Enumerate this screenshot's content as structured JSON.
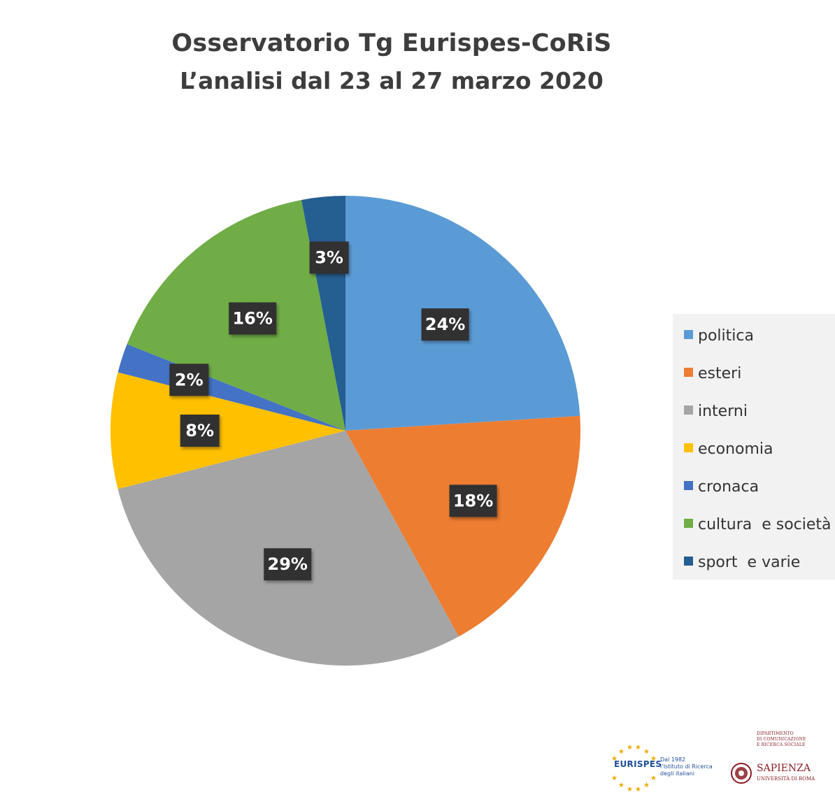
{
  "colors": {
    "politica": "#5b9bd5",
    "esteri": "#ed7d31",
    "interni": "#a5a5a5",
    "economia": "#ffc000",
    "cronaca": "#4472c4",
    "cultura": "#70ad47",
    "sport": "#255e91",
    "label_bg": "#2f2f2f"
  },
  "chart_data": {
    "type": "pie",
    "title": "Osservatorio  Tg Eurispes-CoRiS",
    "subtitle": "L’analisi dal 23 al 27 marzo 2020",
    "legend_position": "right",
    "slices": [
      {
        "name": "politica",
        "value": 24,
        "label": "24%",
        "color": "#5b9bd5"
      },
      {
        "name": "esteri",
        "value": 18,
        "label": "18%",
        "color": "#ed7d31"
      },
      {
        "name": "interni",
        "value": 29,
        "label": "29%",
        "color": "#a5a5a5"
      },
      {
        "name": "economia",
        "value": 8,
        "label": "8%",
        "color": "#ffc000"
      },
      {
        "name": "cronaca",
        "value": 2,
        "label": "2%",
        "color": "#4472c4"
      },
      {
        "name": "cultura  e società",
        "value": 16,
        "label": "16%",
        "color": "#70ad47"
      },
      {
        "name": "sport  e varie",
        "value": 3,
        "label": "3%",
        "color": "#255e91"
      }
    ]
  },
  "logos": {
    "eurispes": {
      "name": "EURISPES",
      "tagline": [
        "Dal 1982",
        "l’Istituto di Ricerca",
        "degli italiani"
      ]
    },
    "sapienza": {
      "department": [
        "DIPARTIMENTO",
        "DI COMUNICAZIONE",
        "E RICERCA SOCIALE"
      ],
      "name": "SAPIENZA",
      "subtitle": "UNIVERSITÀ DI ROMA"
    }
  }
}
